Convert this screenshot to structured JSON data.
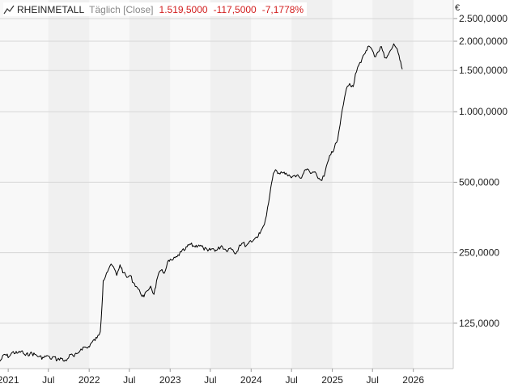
{
  "header": {
    "symbol": "RHEINMETALL",
    "mode": "Täglich [Close]",
    "last": "1.519,5000",
    "change_abs": "-117,5000",
    "change_pct": "-7,1778%",
    "icon": "line-chart-icon"
  },
  "currency": "€",
  "colors": {
    "price_line": "#000000",
    "change_negative": "#d21e1e",
    "band": "#f0f0f0",
    "plot_bg": "#f8f8f8"
  },
  "chart_data": {
    "type": "line",
    "title": "RHEINMETALL",
    "scale": "log",
    "grid": true,
    "legend": "none",
    "y_ticks": [
      {
        "value": 125000,
        "label": "125,0000"
      },
      {
        "value": 250000,
        "label": "250,0000"
      },
      {
        "value": 500000,
        "label": "500,0000"
      },
      {
        "value": 1000000,
        "label": "1.000,0000"
      },
      {
        "value": 1500000,
        "label": "1.500,0000"
      },
      {
        "value": 2000000,
        "label": "2.000,0000"
      },
      {
        "value": 2500000,
        "label": "2.500,0000"
      }
    ],
    "ylim": [
      80000,
      3000000
    ],
    "xlim": [
      "2020-11-25",
      "2026-06-30"
    ],
    "x_ticks": [
      {
        "date": "2021-01-01",
        "label": "2021"
      },
      {
        "date": "2021-07-01",
        "label": "Jul"
      },
      {
        "date": "2022-01-01",
        "label": "2022"
      },
      {
        "date": "2022-07-01",
        "label": "Jul"
      },
      {
        "date": "2023-01-01",
        "label": "2023"
      },
      {
        "date": "2023-07-01",
        "label": "Jul"
      },
      {
        "date": "2024-01-01",
        "label": "2024"
      },
      {
        "date": "2024-07-01",
        "label": "Jul"
      },
      {
        "date": "2025-01-01",
        "label": "2025"
      },
      {
        "date": "2025-07-01",
        "label": "Jul"
      },
      {
        "date": "2026-01-01",
        "label": "2026"
      }
    ],
    "series": [
      {
        "x": [
          "2020-11-25",
          "2020-12-15",
          "2021-01-05",
          "2021-01-20",
          "2021-02-10",
          "2021-03-01",
          "2021-03-20",
          "2021-04-10",
          "2021-05-01",
          "2021-05-20",
          "2021-06-10",
          "2021-06-25",
          "2021-07-10",
          "2021-07-25",
          "2021-08-10",
          "2021-08-25",
          "2021-09-10",
          "2021-09-25",
          "2021-10-10",
          "2021-10-25",
          "2021-11-10",
          "2021-11-25",
          "2021-12-10",
          "2021-12-25",
          "2022-01-15",
          "2022-02-05",
          "2022-02-20",
          "2022-02-28",
          "2022-03-05",
          "2022-03-20",
          "2022-04-05",
          "2022-04-20",
          "2022-05-05",
          "2022-05-20",
          "2022-06-05",
          "2022-06-20",
          "2022-07-05",
          "2022-07-20",
          "2022-08-05",
          "2022-08-20",
          "2022-09-05",
          "2022-09-20",
          "2022-10-05",
          "2022-10-20",
          "2022-11-05",
          "2022-11-20",
          "2022-12-05",
          "2022-12-20",
          "2023-01-10",
          "2023-02-01",
          "2023-02-20",
          "2023-03-10",
          "2023-03-30",
          "2023-04-20",
          "2023-05-10",
          "2023-05-30",
          "2023-06-20",
          "2023-07-10",
          "2023-07-30",
          "2023-08-20",
          "2023-09-10",
          "2023-09-30",
          "2023-10-10",
          "2023-10-25",
          "2023-11-10",
          "2023-11-25",
          "2023-12-10",
          "2023-12-25",
          "2024-01-10",
          "2024-01-25",
          "2024-02-10",
          "2024-02-25",
          "2024-03-10",
          "2024-03-25",
          "2024-04-10",
          "2024-04-25",
          "2024-05-10",
          "2024-05-25",
          "2024-06-10",
          "2024-06-25",
          "2024-07-10",
          "2024-07-25",
          "2024-08-10",
          "2024-08-25",
          "2024-09-10",
          "2024-09-25",
          "2024-10-10",
          "2024-10-25",
          "2024-11-10",
          "2024-11-25",
          "2024-12-10",
          "2024-12-25",
          "2025-01-10",
          "2025-01-25",
          "2025-02-05",
          "2025-02-15",
          "2025-02-25",
          "2025-03-05",
          "2025-03-20",
          "2025-04-05",
          "2025-04-15",
          "2025-04-25",
          "2025-05-10",
          "2025-05-25",
          "2025-06-10",
          "2025-06-25",
          "2025-07-10",
          "2025-07-25",
          "2025-08-10",
          "2025-08-25",
          "2025-09-10",
          "2025-09-25",
          "2025-10-05",
          "2025-10-15",
          "2025-10-25",
          "2025-11-05",
          "2025-11-12"
        ],
        "y": [
          86000,
          92000,
          90000,
          94000,
          93000,
          95000,
          91000,
          93000,
          92000,
          90000,
          89000,
          91000,
          88000,
          90000,
          87000,
          89000,
          86000,
          88000,
          92000,
          90000,
          93000,
          97000,
          99000,
          98000,
          104000,
          108000,
          115000,
          150000,
          190000,
          205000,
          220000,
          218000,
          200000,
          222000,
          205000,
          196000,
          200000,
          186000,
          178000,
          168000,
          162000,
          172000,
          180000,
          166000,
          196000,
          210000,
          204000,
          228000,
          232000,
          240000,
          252000,
          258000,
          272000,
          266000,
          270000,
          262000,
          254000,
          260000,
          256000,
          268000,
          256000,
          262000,
          258000,
          248000,
          270000,
          275000,
          268000,
          280000,
          282000,
          292000,
          302000,
          325000,
          360000,
          440000,
          545000,
          560000,
          542000,
          548000,
          540000,
          530000,
          532000,
          535000,
          520000,
          548000,
          570000,
          545000,
          552000,
          528000,
          510000,
          530000,
          605000,
          655000,
          700000,
          760000,
          880000,
          1020000,
          1150000,
          1250000,
          1320000,
          1280000,
          1450000,
          1550000,
          1620000,
          1760000,
          1900000,
          1870000,
          1720000,
          1800000,
          1900000,
          1700000,
          1750000,
          1850000,
          1950000,
          1880000,
          1780000,
          1637000,
          1519500
        ]
      }
    ]
  }
}
